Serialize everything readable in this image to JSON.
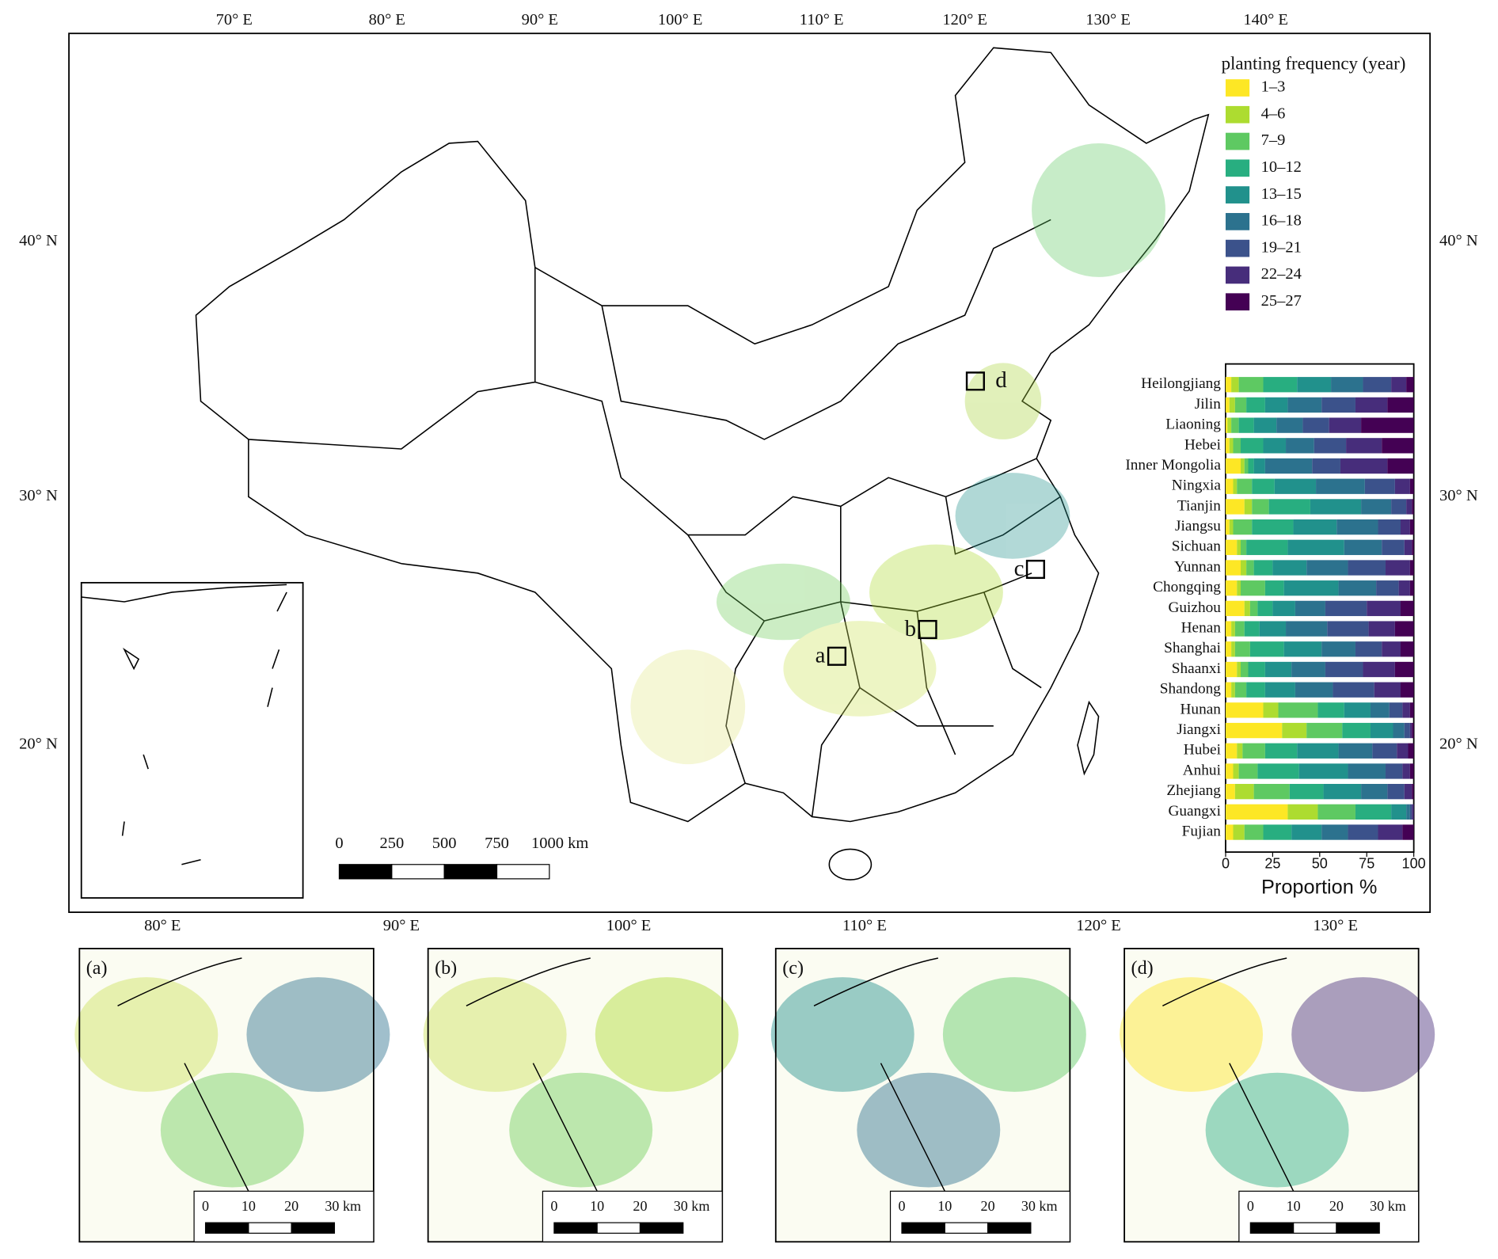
{
  "map": {
    "lon_top": [
      "70° E",
      "80° E",
      "90° E",
      "100° E",
      "110° E",
      "120° E",
      "130° E",
      "140° E"
    ],
    "lon_bottom": [
      "80° E",
      "90° E",
      "100° E",
      "110° E",
      "120° E",
      "130° E"
    ],
    "lat_left": [
      "40° N",
      "30° N",
      "20° N"
    ],
    "lat_right": [
      "40° N",
      "30° N",
      "20° N"
    ],
    "scale_bar": [
      "0",
      "250",
      "500",
      "750",
      "1000 km"
    ],
    "boxes": [
      "a",
      "b",
      "c",
      "d"
    ],
    "panels": [
      {
        "label": "(a)",
        "scale": [
          "0",
          "10",
          "20",
          "30 km"
        ]
      },
      {
        "label": "(b)",
        "scale": [
          "0",
          "10",
          "20",
          "30 km"
        ]
      },
      {
        "label": "(c)",
        "scale": [
          "0",
          "10",
          "20",
          "30 km"
        ]
      },
      {
        "label": "(d)",
        "scale": [
          "0",
          "10",
          "20",
          "30 km"
        ]
      }
    ]
  },
  "chart_data": {
    "type": "bar",
    "orientation": "horizontal",
    "stacked": true,
    "legend_title": "planting frequency (year)",
    "xlabel": "Proportion %",
    "xlim": [
      0,
      100
    ],
    "xticks": [
      0,
      25,
      50,
      75,
      100
    ],
    "categories": [
      "Heilongjiang",
      "Jilin",
      "Liaoning",
      "Hebei",
      "Inner Mongolia",
      "Ningxia",
      "Tianjin",
      "Jiangsu",
      "Sichuan",
      "Yunnan",
      "Chongqing",
      "Guizhou",
      "Henan",
      "Shanghai",
      "Shaanxi",
      "Shandong",
      "Hunan",
      "Jiangxi",
      "Hubei",
      "Anhui",
      "Zhejiang",
      "Guangxi",
      "Fujian"
    ],
    "series": [
      {
        "name": "1–3",
        "color": "#fde725",
        "values": [
          3,
          2,
          1,
          2,
          8,
          4,
          10,
          2,
          6,
          8,
          6,
          10,
          3,
          3,
          6,
          3,
          20,
          30,
          6,
          4,
          5,
          33,
          4
        ]
      },
      {
        "name": "4–6",
        "color": "#addc30",
        "values": [
          4,
          3,
          2,
          2,
          2,
          2,
          4,
          2,
          2,
          3,
          2,
          3,
          2,
          2,
          2,
          2,
          8,
          13,
          3,
          3,
          10,
          16,
          6
        ]
      },
      {
        "name": "7–9",
        "color": "#5ec962",
        "values": [
          13,
          6,
          4,
          4,
          2,
          8,
          9,
          10,
          3,
          4,
          13,
          4,
          5,
          8,
          4,
          6,
          21,
          19,
          12,
          10,
          19,
          20,
          10
        ]
      },
      {
        "name": "10–12",
        "color": "#28ae80",
        "values": [
          18,
          10,
          8,
          12,
          3,
          12,
          22,
          22,
          22,
          10,
          10,
          8,
          8,
          18,
          9,
          10,
          14,
          15,
          17,
          22,
          18,
          19,
          15
        ]
      },
      {
        "name": "13–15",
        "color": "#21918c",
        "values": [
          18,
          12,
          12,
          12,
          6,
          22,
          27,
          23,
          30,
          18,
          29,
          12,
          14,
          20,
          14,
          16,
          14,
          12,
          22,
          26,
          20,
          8,
          16
        ]
      },
      {
        "name": "16–18",
        "color": "#2c728e",
        "values": [
          17,
          18,
          14,
          15,
          25,
          26,
          16,
          22,
          20,
          22,
          20,
          16,
          22,
          18,
          18,
          20,
          10,
          6,
          18,
          20,
          14,
          2,
          14
        ]
      },
      {
        "name": "19–21",
        "color": "#3b528b",
        "values": [
          15,
          18,
          14,
          17,
          15,
          16,
          8,
          12,
          12,
          20,
          12,
          22,
          22,
          14,
          20,
          22,
          7,
          3,
          13,
          9,
          9,
          1,
          16
        ]
      },
      {
        "name": "22–24",
        "color": "#472d7b",
        "values": [
          8,
          17,
          17,
          19,
          25,
          8,
          3,
          5,
          4,
          13,
          6,
          18,
          14,
          10,
          17,
          14,
          4,
          1,
          6,
          4,
          4,
          1,
          13
        ]
      },
      {
        "name": "25–27",
        "color": "#440154",
        "values": [
          4,
          14,
          28,
          17,
          14,
          2,
          1,
          2,
          1,
          2,
          2,
          7,
          10,
          7,
          10,
          7,
          2,
          1,
          3,
          2,
          1,
          0,
          6
        ]
      }
    ]
  }
}
